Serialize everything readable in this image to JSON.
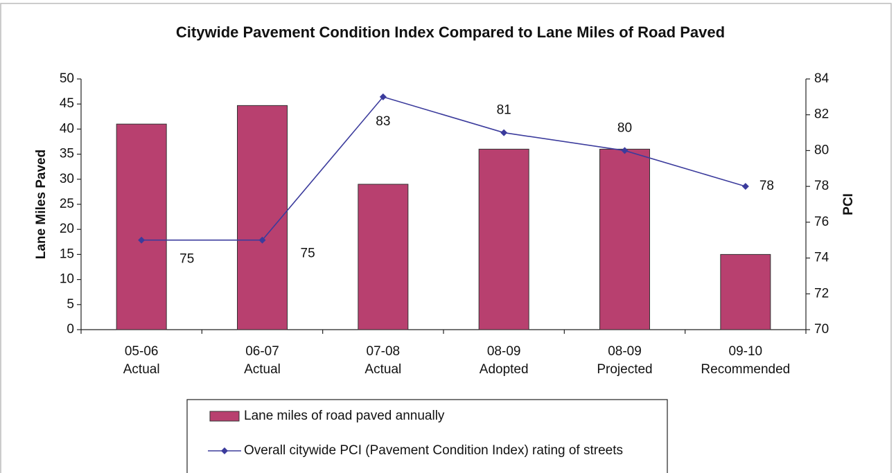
{
  "chart_data": {
    "type": "bar-line",
    "title": "Citywide Pavement Condition Index Compared to Lane Miles of Road Paved",
    "ylabel": "Lane Miles Paved",
    "y2label": "PCI",
    "categories": [
      [
        "05-06",
        "Actual"
      ],
      [
        "06-07",
        "Actual"
      ],
      [
        "07-08",
        "Actual"
      ],
      [
        "08-09",
        "Adopted"
      ],
      [
        "08-09",
        "Projected"
      ],
      [
        "09-10",
        "Recommended"
      ]
    ],
    "series": [
      {
        "name": "Lane miles of road paved annually",
        "type": "bar",
        "color": "#b8406f",
        "values": [
          41,
          44.7,
          29,
          36,
          36,
          15
        ]
      },
      {
        "name": "Overall citywide PCI (Pavement Condition Index) rating of streets",
        "type": "line",
        "axis": "y2",
        "color": "#3b3b9c",
        "values": [
          75,
          75,
          83,
          81,
          80,
          78
        ]
      }
    ],
    "ylim": [
      0,
      50
    ],
    "yticks": [
      0,
      5,
      10,
      15,
      20,
      25,
      30,
      35,
      40,
      45,
      50
    ],
    "y2lim": [
      70,
      84
    ],
    "y2ticks": [
      70,
      72,
      74,
      76,
      78,
      80,
      82,
      84
    ],
    "grid": false,
    "legend": "bottom"
  }
}
